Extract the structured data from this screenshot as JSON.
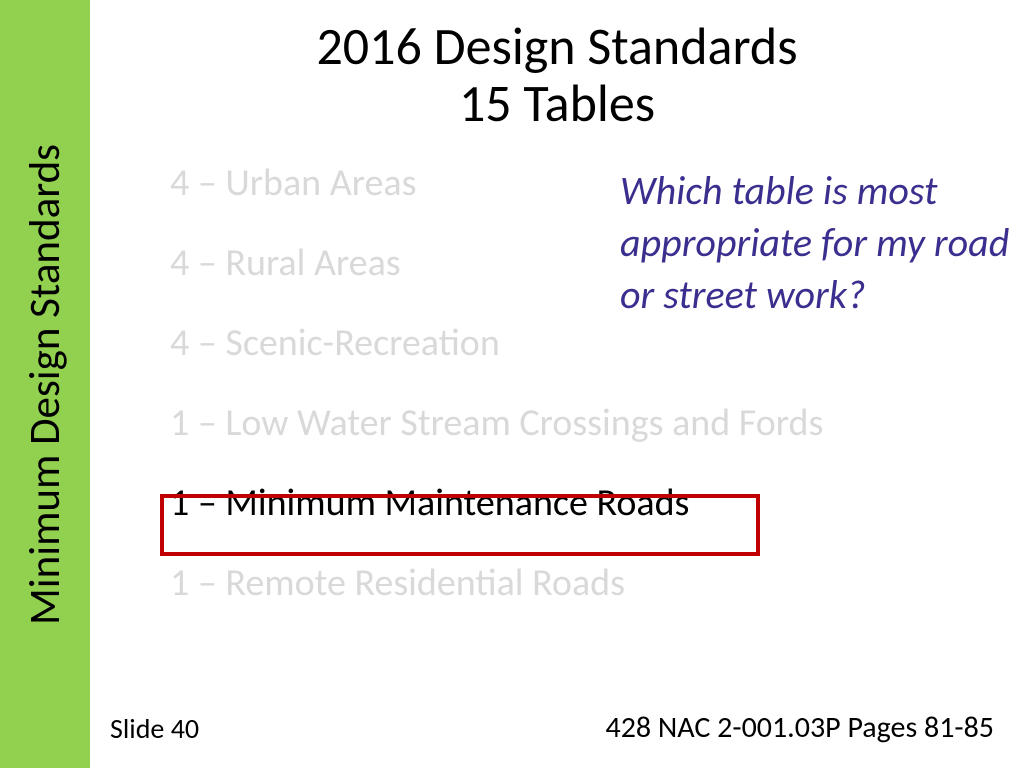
{
  "sidebar": {
    "label": "Minimum Design Standards",
    "background_color": "#92d050"
  },
  "title": {
    "line1": "2016 Design Standards",
    "line2": "15 Tables"
  },
  "list_items": [
    {
      "text": "4 – Urban Areas",
      "faded": true
    },
    {
      "text": "4 – Rural Areas",
      "faded": true
    },
    {
      "text": "4 – Scenic-Recreation",
      "faded": true
    },
    {
      "text": "1 – Low Water Stream Crossings and Fords",
      "faded": true
    },
    {
      "text": "1 – Minimum Maintenance Roads",
      "faded": false
    },
    {
      "text": "1 – Remote Residential Roads",
      "faded": true
    }
  ],
  "question": "Which table is most appropriate for my road or street work?",
  "footer": {
    "left": "Slide 40",
    "right": "428 NAC 2-001.03P Pages 81-85"
  },
  "colors": {
    "faded_text": "#d9d9d9",
    "active_text": "#000000",
    "question_text": "#3a2f8f",
    "highlight_border": "#c00000",
    "background": "#ffffff"
  }
}
